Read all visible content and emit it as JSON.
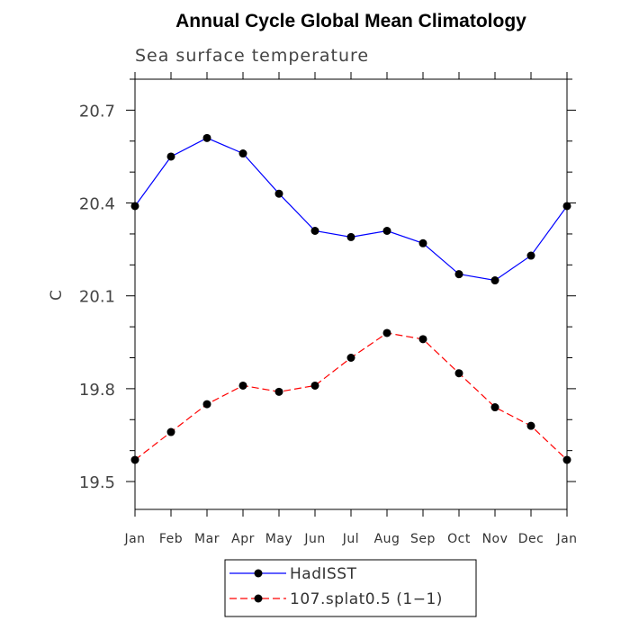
{
  "chart_data": {
    "type": "line",
    "title": "Annual Cycle Global Mean Climatology",
    "subtitle": "Sea surface temperature",
    "xlabel": "",
    "ylabel": "C",
    "categories": [
      "Jan",
      "Feb",
      "Mar",
      "Apr",
      "May",
      "Jun",
      "Jul",
      "Aug",
      "Sep",
      "Oct",
      "Nov",
      "Dec",
      "Jan"
    ],
    "ylim": [
      19.41,
      20.8
    ],
    "yticks": [
      19.5,
      19.8,
      20.1,
      20.4,
      20.7
    ],
    "ytick_labels": [
      "19.5",
      "19.8",
      "20.1",
      "20.4",
      "20.7"
    ],
    "grid": false,
    "legend_position": "bottom",
    "series": [
      {
        "name": "HadISST",
        "color": "#0000ff",
        "line_style": "solid",
        "marker": "filled-circle",
        "values": [
          20.39,
          20.55,
          20.61,
          20.56,
          20.43,
          20.31,
          20.29,
          20.31,
          20.27,
          20.17,
          20.15,
          20.23,
          20.39
        ]
      },
      {
        "name": "107.splat0.5 (1−1)",
        "color": "#ff0000",
        "line_style": "dashed",
        "marker": "filled-circle",
        "values": [
          19.57,
          19.66,
          19.75,
          19.81,
          19.79,
          19.81,
          19.9,
          19.98,
          19.96,
          19.85,
          19.74,
          19.68,
          19.57
        ]
      }
    ]
  }
}
